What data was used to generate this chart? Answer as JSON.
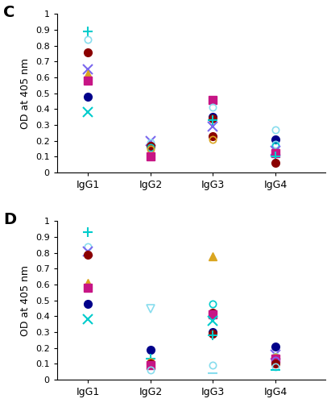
{
  "panel_C": {
    "IgG1": [
      {
        "value": 0.89,
        "color": "#00CCCC",
        "marker": "+",
        "ms": 8,
        "mew": 1.5,
        "fill": true
      },
      {
        "value": 0.84,
        "color": "#88DDEE",
        "marker": "o",
        "ms": 6,
        "mew": 1.2,
        "fill": false
      },
      {
        "value": 0.76,
        "color": "#8B0000",
        "marker": "o",
        "ms": 7,
        "mew": 1.0,
        "fill": true
      },
      {
        "value": 0.65,
        "color": "#7B68EE",
        "marker": "x",
        "ms": 8,
        "mew": 1.5,
        "fill": true
      },
      {
        "value": 0.62,
        "color": "#DAA520",
        "marker": "^",
        "ms": 7,
        "mew": 1.0,
        "fill": true
      },
      {
        "value": 0.58,
        "color": "#C71585",
        "marker": "s",
        "ms": 7,
        "mew": 1.0,
        "fill": true
      },
      {
        "value": 0.48,
        "color": "#00008B",
        "marker": "o",
        "ms": 7,
        "mew": 1.0,
        "fill": true
      },
      {
        "value": 0.38,
        "color": "#00CCCC",
        "marker": "x",
        "ms": 8,
        "mew": 1.5,
        "fill": true
      }
    ],
    "IgG2": [
      {
        "value": 0.2,
        "color": "#7B68EE",
        "marker": "x",
        "ms": 8,
        "mew": 1.5,
        "fill": true
      },
      {
        "value": 0.19,
        "color": "#88DDEE",
        "marker": "o",
        "ms": 6,
        "mew": 1.2,
        "fill": false
      },
      {
        "value": 0.17,
        "color": "#8B0000",
        "marker": "o",
        "ms": 7,
        "mew": 1.0,
        "fill": true
      },
      {
        "value": 0.16,
        "color": "#00CCCC",
        "marker": "o",
        "ms": 6,
        "mew": 1.2,
        "fill": false
      },
      {
        "value": 0.15,
        "color": "#DAA520",
        "marker": "o",
        "ms": 6,
        "mew": 1.2,
        "fill": false
      },
      {
        "value": 0.1,
        "color": "#C71585",
        "marker": "s",
        "ms": 7,
        "mew": 1.0,
        "fill": true
      }
    ],
    "IgG3": [
      {
        "value": 0.46,
        "color": "#C71585",
        "marker": "s",
        "ms": 7,
        "mew": 1.0,
        "fill": true
      },
      {
        "value": 0.41,
        "color": "#88DDEE",
        "marker": "o",
        "ms": 6,
        "mew": 1.2,
        "fill": false
      },
      {
        "value": 0.35,
        "color": "#00008B",
        "marker": "o",
        "ms": 7,
        "mew": 1.0,
        "fill": true
      },
      {
        "value": 0.34,
        "color": "#8B0000",
        "marker": "o",
        "ms": 7,
        "mew": 1.0,
        "fill": true
      },
      {
        "value": 0.33,
        "color": "#00CCCC",
        "marker": "+",
        "ms": 8,
        "mew": 1.5,
        "fill": true
      },
      {
        "value": 0.29,
        "color": "#7B68EE",
        "marker": "x",
        "ms": 8,
        "mew": 1.5,
        "fill": true
      },
      {
        "value": 0.23,
        "color": "#8B0000",
        "marker": "o",
        "ms": 7,
        "mew": 1.0,
        "fill": true
      },
      {
        "value": 0.21,
        "color": "#DAA520",
        "marker": "o",
        "ms": 6,
        "mew": 1.2,
        "fill": false
      }
    ],
    "IgG4": [
      {
        "value": 0.27,
        "color": "#88DDEE",
        "marker": "o",
        "ms": 6,
        "mew": 1.2,
        "fill": false
      },
      {
        "value": 0.21,
        "color": "#00008B",
        "marker": "o",
        "ms": 7,
        "mew": 1.0,
        "fill": true
      },
      {
        "value": 0.18,
        "color": "#88DDEE",
        "marker": "o",
        "ms": 6,
        "mew": 1.2,
        "fill": false
      },
      {
        "value": 0.17,
        "color": "#00CCCC",
        "marker": "o",
        "ms": 6,
        "mew": 1.2,
        "fill": false
      },
      {
        "value": 0.14,
        "color": "#7B68EE",
        "marker": "x",
        "ms": 8,
        "mew": 1.5,
        "fill": true
      },
      {
        "value": 0.13,
        "color": "#DAA520",
        "marker": "o",
        "ms": 6,
        "mew": 1.2,
        "fill": false
      },
      {
        "value": 0.12,
        "color": "#C71585",
        "marker": "s",
        "ms": 7,
        "mew": 1.0,
        "fill": true
      },
      {
        "value": 0.1,
        "color": "#00CCCC",
        "marker": "+",
        "ms": 8,
        "mew": 1.5,
        "fill": true
      },
      {
        "value": 0.06,
        "color": "#8B0000",
        "marker": "o",
        "ms": 7,
        "mew": 1.0,
        "fill": true
      }
    ]
  },
  "panel_D": {
    "IgG1": [
      {
        "value": 0.93,
        "color": "#00CCCC",
        "marker": "+",
        "ms": 8,
        "mew": 1.5,
        "fill": true
      },
      {
        "value": 0.84,
        "color": "#88DDEE",
        "marker": "o",
        "ms": 6,
        "mew": 1.2,
        "fill": false
      },
      {
        "value": 0.81,
        "color": "#7B68EE",
        "marker": "x",
        "ms": 8,
        "mew": 1.5,
        "fill": true
      },
      {
        "value": 0.79,
        "color": "#8B0000",
        "marker": "o",
        "ms": 7,
        "mew": 1.0,
        "fill": true
      },
      {
        "value": 0.61,
        "color": "#DAA520",
        "marker": "^",
        "ms": 7,
        "mew": 1.0,
        "fill": true
      },
      {
        "value": 0.58,
        "color": "#C71585",
        "marker": "s",
        "ms": 7,
        "mew": 1.0,
        "fill": true
      },
      {
        "value": 0.48,
        "color": "#00008B",
        "marker": "o",
        "ms": 7,
        "mew": 1.0,
        "fill": true
      },
      {
        "value": 0.38,
        "color": "#00CCCC",
        "marker": "x",
        "ms": 8,
        "mew": 1.5,
        "fill": true
      }
    ],
    "IgG2": [
      {
        "value": 0.45,
        "color": "#88DDEE",
        "marker": "v",
        "ms": 7,
        "mew": 1.2,
        "fill": false
      },
      {
        "value": 0.19,
        "color": "#00008B",
        "marker": "o",
        "ms": 7,
        "mew": 1.0,
        "fill": true
      },
      {
        "value": 0.13,
        "color": "#00CCCC",
        "marker": "+",
        "ms": 8,
        "mew": 1.5,
        "fill": true
      },
      {
        "value": 0.11,
        "color": "#DAA520",
        "marker": "o",
        "ms": 6,
        "mew": 1.2,
        "fill": false
      },
      {
        "value": 0.1,
        "color": "#8B0000",
        "marker": "o",
        "ms": 7,
        "mew": 1.0,
        "fill": true
      },
      {
        "value": 0.09,
        "color": "#C71585",
        "marker": "s",
        "ms": 7,
        "mew": 1.0,
        "fill": true
      },
      {
        "value": 0.06,
        "color": "#88DDEE",
        "marker": "o",
        "ms": 6,
        "mew": 1.2,
        "fill": false
      }
    ],
    "IgG3": [
      {
        "value": 0.78,
        "color": "#DAA520",
        "marker": "^",
        "ms": 7,
        "mew": 1.0,
        "fill": true
      },
      {
        "value": 0.48,
        "color": "#00CCCC",
        "marker": "o",
        "ms": 6,
        "mew": 1.2,
        "fill": false
      },
      {
        "value": 0.42,
        "color": "#8B0000",
        "marker": "o",
        "ms": 7,
        "mew": 1.0,
        "fill": true
      },
      {
        "value": 0.41,
        "color": "#C71585",
        "marker": "s",
        "ms": 7,
        "mew": 1.0,
        "fill": true
      },
      {
        "value": 0.37,
        "color": "#00CCCC",
        "marker": "x",
        "ms": 8,
        "mew": 1.5,
        "fill": true
      },
      {
        "value": 0.3,
        "color": "#00008B",
        "marker": "o",
        "ms": 7,
        "mew": 1.0,
        "fill": true
      },
      {
        "value": 0.29,
        "color": "#8B0000",
        "marker": "o",
        "ms": 7,
        "mew": 1.0,
        "fill": true
      },
      {
        "value": 0.28,
        "color": "#00CCCC",
        "marker": "+",
        "ms": 8,
        "mew": 1.5,
        "fill": true
      },
      {
        "value": 0.09,
        "color": "#88DDEE",
        "marker": "o",
        "ms": 6,
        "mew": 1.2,
        "fill": false
      },
      {
        "value": 0.04,
        "color": "#88DDEE",
        "marker": "_",
        "ms": 8,
        "mew": 1.5,
        "fill": true
      }
    ],
    "IgG4": [
      {
        "value": 0.21,
        "color": "#00008B",
        "marker": "o",
        "ms": 7,
        "mew": 1.0,
        "fill": true
      },
      {
        "value": 0.16,
        "color": "#7B68EE",
        "marker": "x",
        "ms": 8,
        "mew": 1.5,
        "fill": true
      },
      {
        "value": 0.15,
        "color": "#88DDEE",
        "marker": "o",
        "ms": 6,
        "mew": 1.2,
        "fill": false
      },
      {
        "value": 0.14,
        "color": "#DAA520",
        "marker": "o",
        "ms": 6,
        "mew": 1.2,
        "fill": false
      },
      {
        "value": 0.13,
        "color": "#C71585",
        "marker": "s",
        "ms": 7,
        "mew": 1.0,
        "fill": true
      },
      {
        "value": 0.12,
        "color": "#7B68EE",
        "marker": "o",
        "ms": 6,
        "mew": 1.2,
        "fill": false
      },
      {
        "value": 0.1,
        "color": "#8B0000",
        "marker": "o",
        "ms": 7,
        "mew": 1.0,
        "fill": true
      },
      {
        "value": 0.08,
        "color": "#88DDEE",
        "marker": "o",
        "ms": 6,
        "mew": 1.2,
        "fill": false
      },
      {
        "value": 0.06,
        "color": "#00CCCC",
        "marker": "_",
        "ms": 8,
        "mew": 1.5,
        "fill": true
      }
    ]
  },
  "x_labels": [
    "IgG1",
    "IgG2",
    "IgG3",
    "IgG4"
  ],
  "x_positions": [
    1,
    2,
    3,
    4
  ],
  "ylabel": "OD at 405 nm",
  "ylim": [
    0,
    1.0
  ],
  "yticks": [
    0,
    0.1,
    0.2,
    0.3,
    0.4,
    0.5,
    0.6,
    0.7,
    0.8,
    0.9,
    1
  ],
  "ytick_labels": [
    "0",
    "0.1",
    "0.2",
    "0.3",
    "0.4",
    "0.5",
    "0.6",
    "0.7",
    "0.8",
    "0.9",
    "1"
  ],
  "panel_labels": [
    "C",
    "D"
  ],
  "background": "#FFFFFF"
}
